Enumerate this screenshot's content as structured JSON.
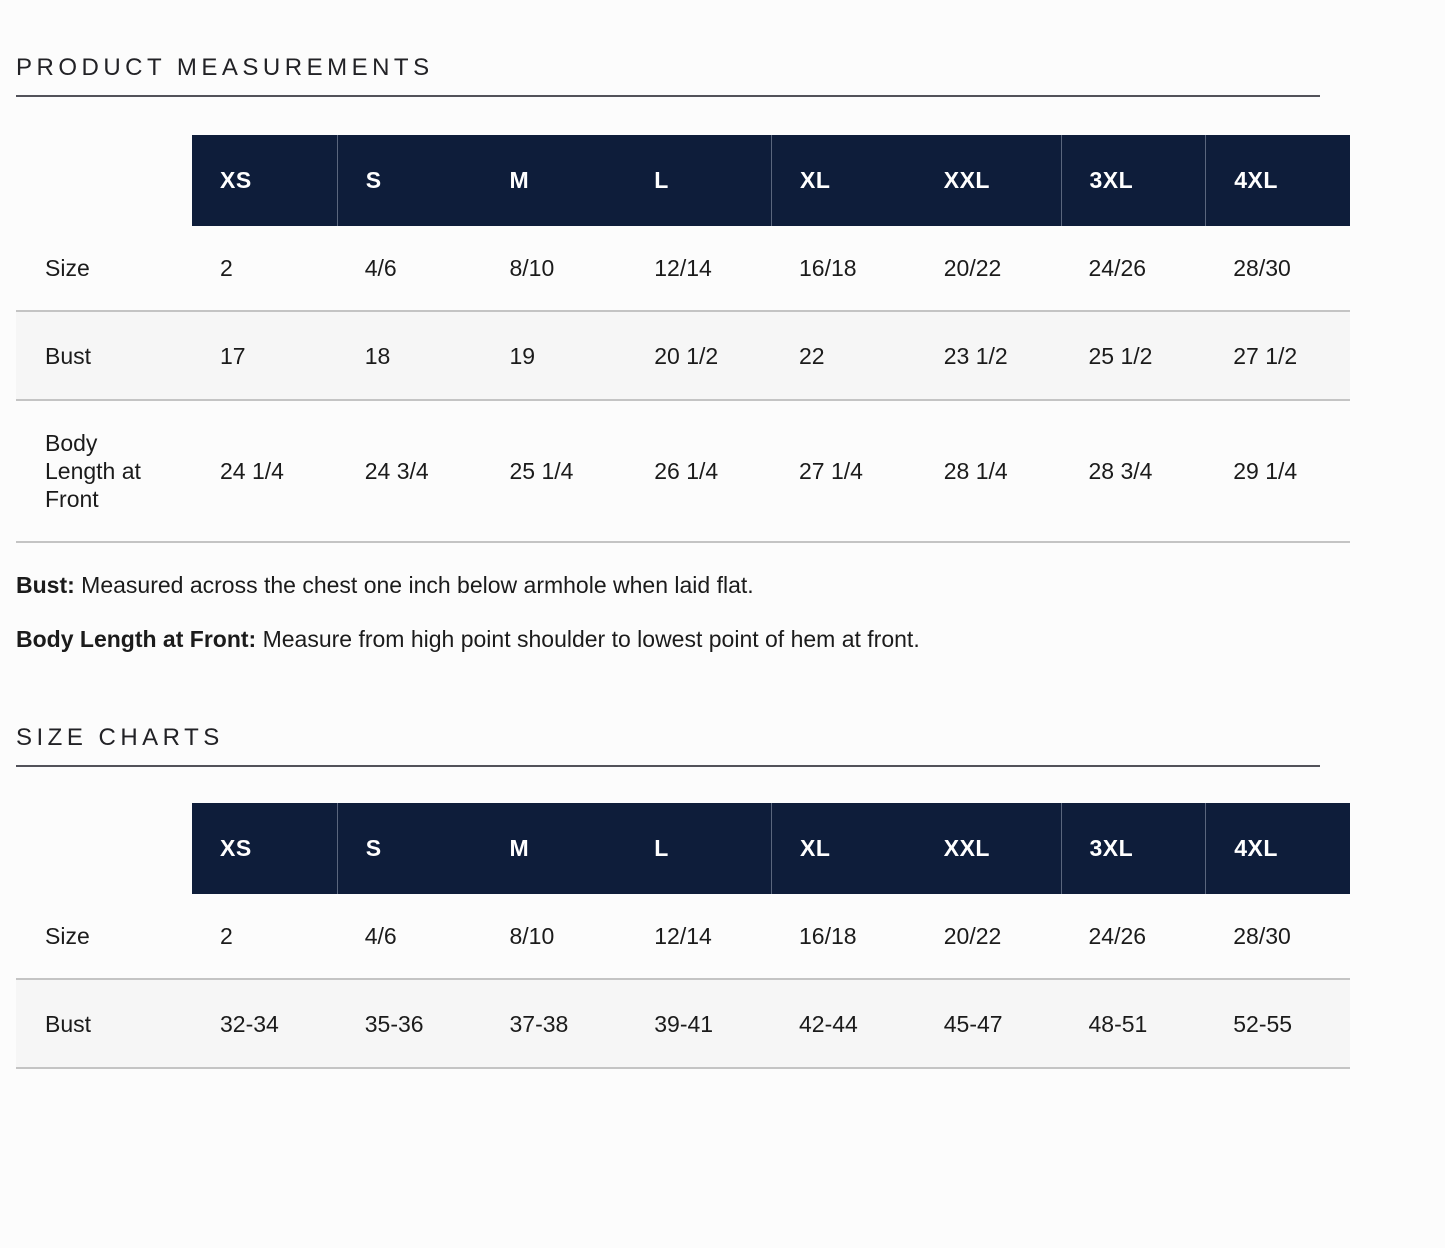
{
  "colors": {
    "page_bg": "#fcfcfc",
    "header_bg": "#0e1d3a",
    "header_text": "#ffffff",
    "stripe_bg": "#f6f6f6",
    "stripe_border": "#c4c4c4",
    "text": "#1b1b1b",
    "rule": "#52525a"
  },
  "product_measurements": {
    "title": "PRODUCT MEASUREMENTS",
    "columns": [
      "XS",
      "S",
      "M",
      "L",
      "XL",
      "XXL",
      "3XL",
      "4XL"
    ],
    "rows": [
      {
        "label": "Size",
        "values": [
          "2",
          "4/6",
          "8/10",
          "12/14",
          "16/18",
          "20/22",
          "24/26",
          "28/30"
        ]
      },
      {
        "label": "Bust",
        "values": [
          "17",
          "18",
          "19",
          "20 1/2",
          "22",
          "23 1/2",
          "25 1/2",
          "27 1/2"
        ]
      },
      {
        "label": "Body Length at Front",
        "values": [
          "24 1/4",
          "24 3/4",
          "25 1/4",
          "26 1/4",
          "27 1/4",
          "28 1/4",
          "28 3/4",
          "29 1/4"
        ]
      }
    ],
    "notes": [
      {
        "term": "Bust:",
        "text": " Measured across the chest one inch below armhole when laid flat."
      },
      {
        "term": "Body Length at Front:",
        "text": " Measure from high point shoulder to lowest point of hem at front."
      }
    ]
  },
  "size_charts": {
    "title": "SIZE CHARTS",
    "columns": [
      "XS",
      "S",
      "M",
      "L",
      "XL",
      "XXL",
      "3XL",
      "4XL"
    ],
    "rows": [
      {
        "label": "Size",
        "values": [
          "2",
          "4/6",
          "8/10",
          "12/14",
          "16/18",
          "20/22",
          "24/26",
          "28/30"
        ]
      },
      {
        "label": "Bust",
        "values": [
          "32-34",
          "35-36",
          "37-38",
          "39-41",
          "42-44",
          "45-47",
          "48-51",
          "52-55"
        ]
      }
    ]
  }
}
